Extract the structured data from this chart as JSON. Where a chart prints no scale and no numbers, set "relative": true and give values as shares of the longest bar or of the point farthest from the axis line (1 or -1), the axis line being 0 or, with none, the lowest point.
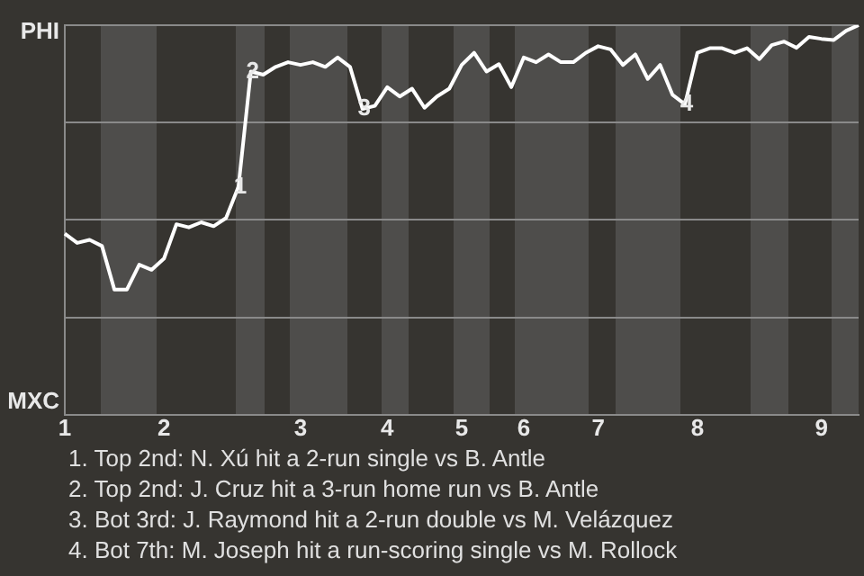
{
  "chart_data": {
    "type": "line",
    "categories": [
      "1",
      null,
      null,
      null,
      null,
      null,
      null,
      null,
      "2",
      null,
      null,
      null,
      null,
      null,
      null,
      null,
      null,
      null,
      null,
      "3",
      null,
      null,
      null,
      null,
      null,
      null,
      "4",
      null,
      null,
      null,
      null,
      null,
      "5",
      null,
      null,
      null,
      null,
      "6",
      null,
      null,
      null,
      null,
      null,
      "7",
      null,
      null,
      null,
      null,
      null,
      null,
      null,
      "8",
      null,
      null,
      null,
      null,
      null,
      null,
      null,
      null,
      null,
      "9",
      null,
      null,
      null
    ],
    "relative": true,
    "series": [
      {
        "color": "#ffffff",
        "values": [
          0.465,
          0.441,
          0.449,
          0.433,
          0.321,
          0.321,
          0.385,
          0.372,
          0.401,
          0.489,
          0.481,
          0.494,
          0.484,
          0.505,
          0.585,
          0.881,
          0.873,
          0.893,
          0.905,
          0.898,
          0.905,
          0.893,
          0.917,
          0.893,
          0.785,
          0.793,
          0.841,
          0.817,
          0.837,
          0.788,
          0.817,
          0.837,
          0.898,
          0.929,
          0.881,
          0.9,
          0.841,
          0.917,
          0.905,
          0.925,
          0.905,
          0.905,
          0.929,
          0.946,
          0.938,
          0.898,
          0.925,
          0.862,
          0.898,
          0.821,
          0.797,
          0.929,
          0.941,
          0.941,
          0.929,
          0.941,
          0.913,
          0.949,
          0.958,
          0.942,
          0.97,
          0.965,
          0.962,
          0.986,
          1
        ],
        "name": null
      }
    ],
    "grid": "y",
    "annotations": [
      "PHI",
      "MXC",
      {
        "text": "1",
        "y": 0.585
      },
      {
        "text": "2",
        "y": 0.881
      },
      {
        "text": "3",
        "y": 0.785
      },
      {
        "text": "4",
        "y": 0.797
      },
      "1. Top 2nd: N. Xú hit a 2-run single vs B. Antle",
      "2. Top 2nd: J. Cruz hit a 3-run home run vs B. Antle",
      "3. Bot 3rd: J. Raymond hit a 2-run double vs M. Velázquez",
      "4. Bot 7th: M. Joseph hit a run-scoring single vs M. Rollock"
    ]
  }
}
